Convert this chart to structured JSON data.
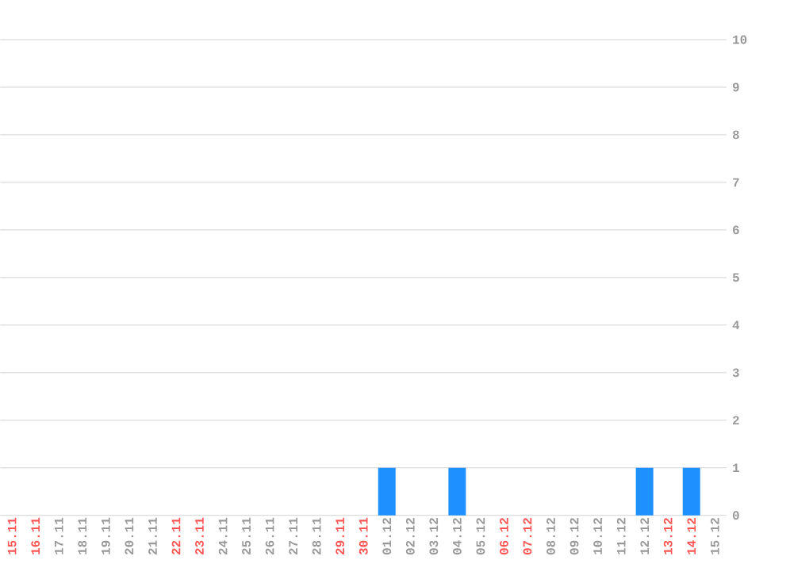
{
  "chart_data": {
    "type": "bar",
    "categories": [
      "15.11",
      "16.11",
      "17.11",
      "18.11",
      "19.11",
      "20.11",
      "21.11",
      "22.11",
      "23.11",
      "24.11",
      "25.11",
      "26.11",
      "27.11",
      "28.11",
      "29.11",
      "30.11",
      "01.12",
      "02.12",
      "03.12",
      "04.12",
      "05.12",
      "06.12",
      "07.12",
      "08.12",
      "09.12",
      "10.12",
      "11.12",
      "12.12",
      "13.12",
      "14.12",
      "15.12"
    ],
    "values": [
      0,
      0,
      0,
      0,
      0,
      0,
      0,
      0,
      0,
      0,
      0,
      0,
      0,
      0,
      0,
      0,
      1,
      0,
      0,
      1,
      0,
      0,
      0,
      0,
      0,
      0,
      0,
      1,
      0,
      1,
      0
    ],
    "color": "#1e90ff",
    "ylim": [
      0,
      10
    ],
    "yticks": [
      0,
      1,
      2,
      3,
      4,
      5,
      6,
      7,
      8,
      9,
      10
    ],
    "grid": "y"
  }
}
